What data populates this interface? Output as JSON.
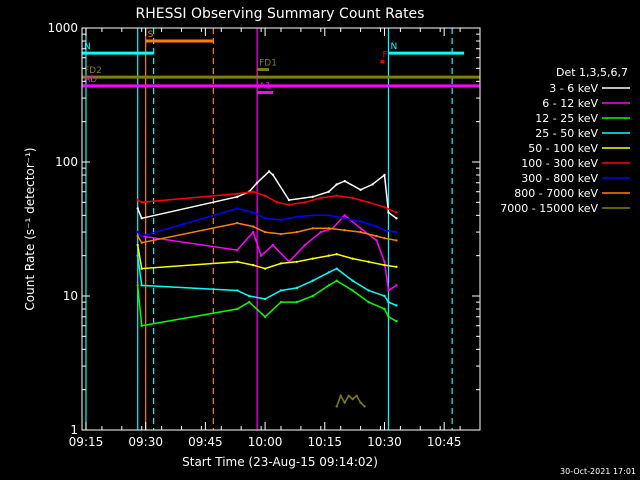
{
  "chart_data": {
    "type": "line",
    "title": "RHESSI Observing Summary Count Rates",
    "xlabel": "Start Time (23-Aug-15 09:14:02)",
    "ylabel": "Count Rate (s⁻¹ detector⁻¹)",
    "y_scale": "log",
    "ylim": [
      1,
      1000
    ],
    "xlim": [
      "09:14",
      "10:54"
    ],
    "x_ticks": [
      "09:15",
      "09:30",
      "09:45",
      "10:00",
      "10:15",
      "10:30",
      "10:45"
    ],
    "y_ticks": [
      "1",
      "10",
      "100",
      "1000"
    ],
    "legend_title": "Det 1,3,5,6,7",
    "legend_position": "right",
    "timestamp": "30-Oct-2021 17:01",
    "series": [
      {
        "name": "3 - 6 keV",
        "color": "#ffffff",
        "x": [
          "09:28",
          "09:29",
          "09:53",
          "09:56",
          "09:58",
          "10:01",
          "10:02",
          "10:06",
          "10:12",
          "10:16",
          "10:18",
          "10:20",
          "10:24",
          "10:27",
          "10:30",
          "10:31",
          "10:33"
        ],
        "y": [
          45,
          38,
          55,
          60,
          70,
          85,
          80,
          52,
          55,
          60,
          68,
          72,
          62,
          68,
          80,
          42,
          38
        ]
      },
      {
        "name": "6 - 12 keV",
        "color": "#ff00ff",
        "x": [
          "09:28",
          "09:29",
          "09:53",
          "09:57",
          "09:59",
          "10:02",
          "10:06",
          "10:10",
          "10:14",
          "10:17",
          "10:20",
          "10:24",
          "10:28",
          "10:30",
          "10:31",
          "10:33"
        ],
        "y": [
          30,
          28,
          22,
          30,
          20,
          24,
          18,
          24,
          30,
          32,
          40,
          32,
          26,
          18,
          11,
          12
        ]
      },
      {
        "name": "12 - 25 keV",
        "color": "#00ff00",
        "x": [
          "09:28",
          "09:29",
          "09:53",
          "09:56",
          "10:00",
          "10:04",
          "10:08",
          "10:12",
          "10:16",
          "10:18",
          "10:22",
          "10:26",
          "10:30",
          "10:31",
          "10:33"
        ],
        "y": [
          12,
          6,
          8,
          9,
          7,
          9,
          9,
          10,
          12,
          13,
          11,
          9,
          8,
          7,
          6.5
        ]
      },
      {
        "name": "25 - 50 keV",
        "color": "#00ffff",
        "x": [
          "09:28",
          "09:29",
          "09:53",
          "09:56",
          "10:00",
          "10:04",
          "10:08",
          "10:12",
          "10:16",
          "10:18",
          "10:22",
          "10:26",
          "10:30",
          "10:31",
          "10:33"
        ],
        "y": [
          20,
          12,
          11,
          10,
          9.5,
          11,
          11.5,
          13,
          15,
          16,
          13,
          11,
          10,
          9,
          8.5
        ]
      },
      {
        "name": "50 - 100 keV",
        "color": "#ffff00",
        "x": [
          "09:28",
          "09:29",
          "09:53",
          "09:57",
          "10:00",
          "10:04",
          "10:08",
          "10:12",
          "10:16",
          "10:18",
          "10:22",
          "10:26",
          "10:30",
          "10:33"
        ],
        "y": [
          24,
          16,
          18,
          17,
          16,
          17.5,
          18,
          19,
          20,
          20.5,
          19,
          18,
          17,
          16.5
        ]
      },
      {
        "name": "100 - 300 keV",
        "color": "#ff0000",
        "x": [
          "09:28",
          "09:29",
          "09:53",
          "09:57",
          "10:00",
          "10:03",
          "10:06",
          "10:10",
          "10:14",
          "10:18",
          "10:22",
          "10:26",
          "10:30",
          "10:33"
        ],
        "y": [
          52,
          50,
          58,
          60,
          56,
          50,
          48,
          50,
          54,
          56,
          54,
          50,
          46,
          42
        ]
      },
      {
        "name": "300 - 800 keV",
        "color": "#0000ff",
        "x": [
          "09:28",
          "09:29",
          "09:53",
          "09:57",
          "10:00",
          "10:04",
          "10:08",
          "10:12",
          "10:16",
          "10:20",
          "10:24",
          "10:28",
          "10:30",
          "10:33"
        ],
        "y": [
          30,
          28,
          45,
          42,
          38,
          37,
          39,
          40,
          40,
          38,
          36,
          33,
          31,
          30
        ]
      },
      {
        "name": "800 - 7000 keV",
        "color": "#ff8000",
        "x": [
          "09:28",
          "09:29",
          "09:53",
          "09:57",
          "10:00",
          "10:04",
          "10:08",
          "10:12",
          "10:16",
          "10:20",
          "10:24",
          "10:28",
          "10:30",
          "10:33"
        ],
        "y": [
          28,
          25,
          35,
          33,
          30,
          29,
          30,
          32,
          32,
          31,
          30,
          28,
          27,
          26
        ]
      },
      {
        "name": "7000 - 15000 keV",
        "color": "#808000",
        "x": [
          "10:18",
          "10:19",
          "10:20",
          "10:21",
          "10:22",
          "10:23",
          "10:24",
          "10:25"
        ],
        "y": [
          1.5,
          1.8,
          1.6,
          1.8,
          1.7,
          1.8,
          1.6,
          1.5
        ]
      }
    ],
    "annotations": {
      "vertical_lines": [
        {
          "time": "09:15",
          "color": "#00ffff",
          "style": "solid"
        },
        {
          "time": "09:28",
          "color": "#00ffff",
          "style": "solid"
        },
        {
          "time": "09:30",
          "color": "#ff8000",
          "style": "solid"
        },
        {
          "time": "09:32",
          "color": "#00ffff",
          "style": "dashed"
        },
        {
          "time": "09:47",
          "color": "#ff8000",
          "style": "dashed"
        },
        {
          "time": "09:58",
          "color": "#ff00ff",
          "style": "solid"
        },
        {
          "time": "10:31",
          "color": "#00ffff",
          "style": "solid"
        },
        {
          "time": "10:47",
          "color": "#00ffff",
          "style": "dashed"
        }
      ],
      "flag_bars": [
        {
          "label": "S",
          "color": "#ff8000",
          "start": "09:30",
          "end": "09:47",
          "level": 800
        },
        {
          "label": "N",
          "color": "#00ffff",
          "start": "09:14",
          "end": "09:32",
          "level": 650
        },
        {
          "label": "N",
          "color": "#00ffff",
          "start": "10:31",
          "end": "10:50",
          "level": 650
        },
        {
          "label": "F",
          "color": "#ff0000",
          "start": "10:29",
          "end": "10:30",
          "level": 560
        },
        {
          "label": "FD1",
          "color": "#808000",
          "start": "09:58",
          "end": "10:01",
          "level": 490
        },
        {
          "label": "FD2",
          "color": "#808000",
          "start": "09:14",
          "end": "10:54",
          "level": 430
        },
        {
          "label": "AD",
          "color": "#ff00ff",
          "start": "09:14",
          "end": "10:54",
          "level": 370
        },
        {
          "label": "A1",
          "color": "#ff00ff",
          "start": "09:58",
          "end": "10:02",
          "level": 330
        }
      ]
    }
  }
}
